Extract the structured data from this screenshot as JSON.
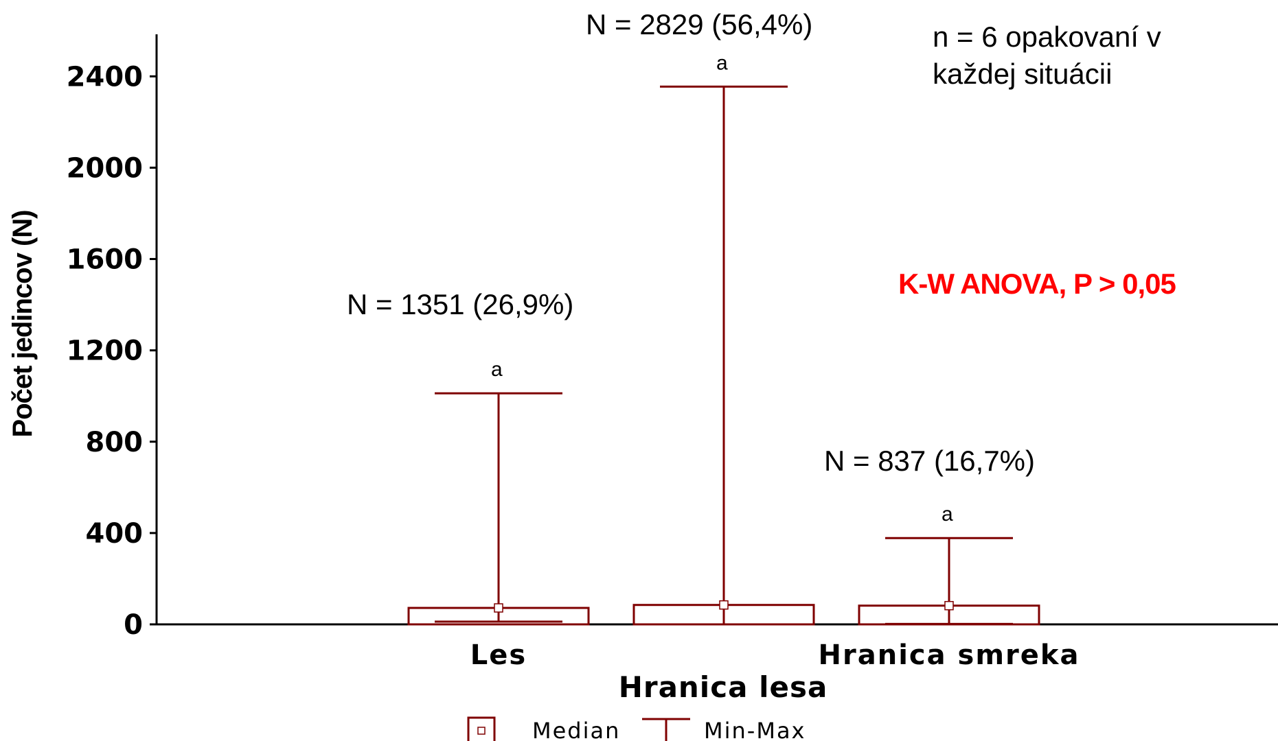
{
  "chart_data": {
    "type": "box",
    "xlabel": "Hranica lesa",
    "ylabel": "Počet jedincov (N)",
    "ylim": [
      0,
      2600
    ],
    "yticks": [
      0,
      400,
      800,
      1200,
      1600,
      2000,
      2400
    ],
    "categories": [
      "Les",
      "",
      "Hranica smreka"
    ],
    "category_tick_labels": [
      "Les",
      "Hranica smreka"
    ],
    "series": [
      {
        "category": "Les",
        "median": 72,
        "min": 12,
        "max": 1012,
        "box_top": 72,
        "n_label": "N = 1351 (26,9%)",
        "significance": "a"
      },
      {
        "category": "",
        "median": 85,
        "min": 0,
        "max": 2355,
        "box_top": 85,
        "n_label": "N = 2829 (56,4%)",
        "significance": "a"
      },
      {
        "category": "Hranica smreka",
        "median": 82,
        "min": 2,
        "max": 378,
        "box_top": 82,
        "n_label": "N = 837 (16,7%)",
        "significance": "a"
      }
    ],
    "annotations": {
      "replicates_line1": "n = 6 opakovaní v",
      "replicates_line2": "každej situácii",
      "test_result": "K-W ANOVA, P > 0,05"
    },
    "legend": {
      "placement": "bottom-center",
      "items": [
        {
          "marker": "median-box-icon",
          "label": "Median"
        },
        {
          "marker": "min-max-whisker-icon",
          "label": "Min-Max"
        }
      ]
    },
    "colors": {
      "series": "#7f0000",
      "axis": "#000000",
      "test_result": "#ff0000"
    },
    "grid": false
  }
}
